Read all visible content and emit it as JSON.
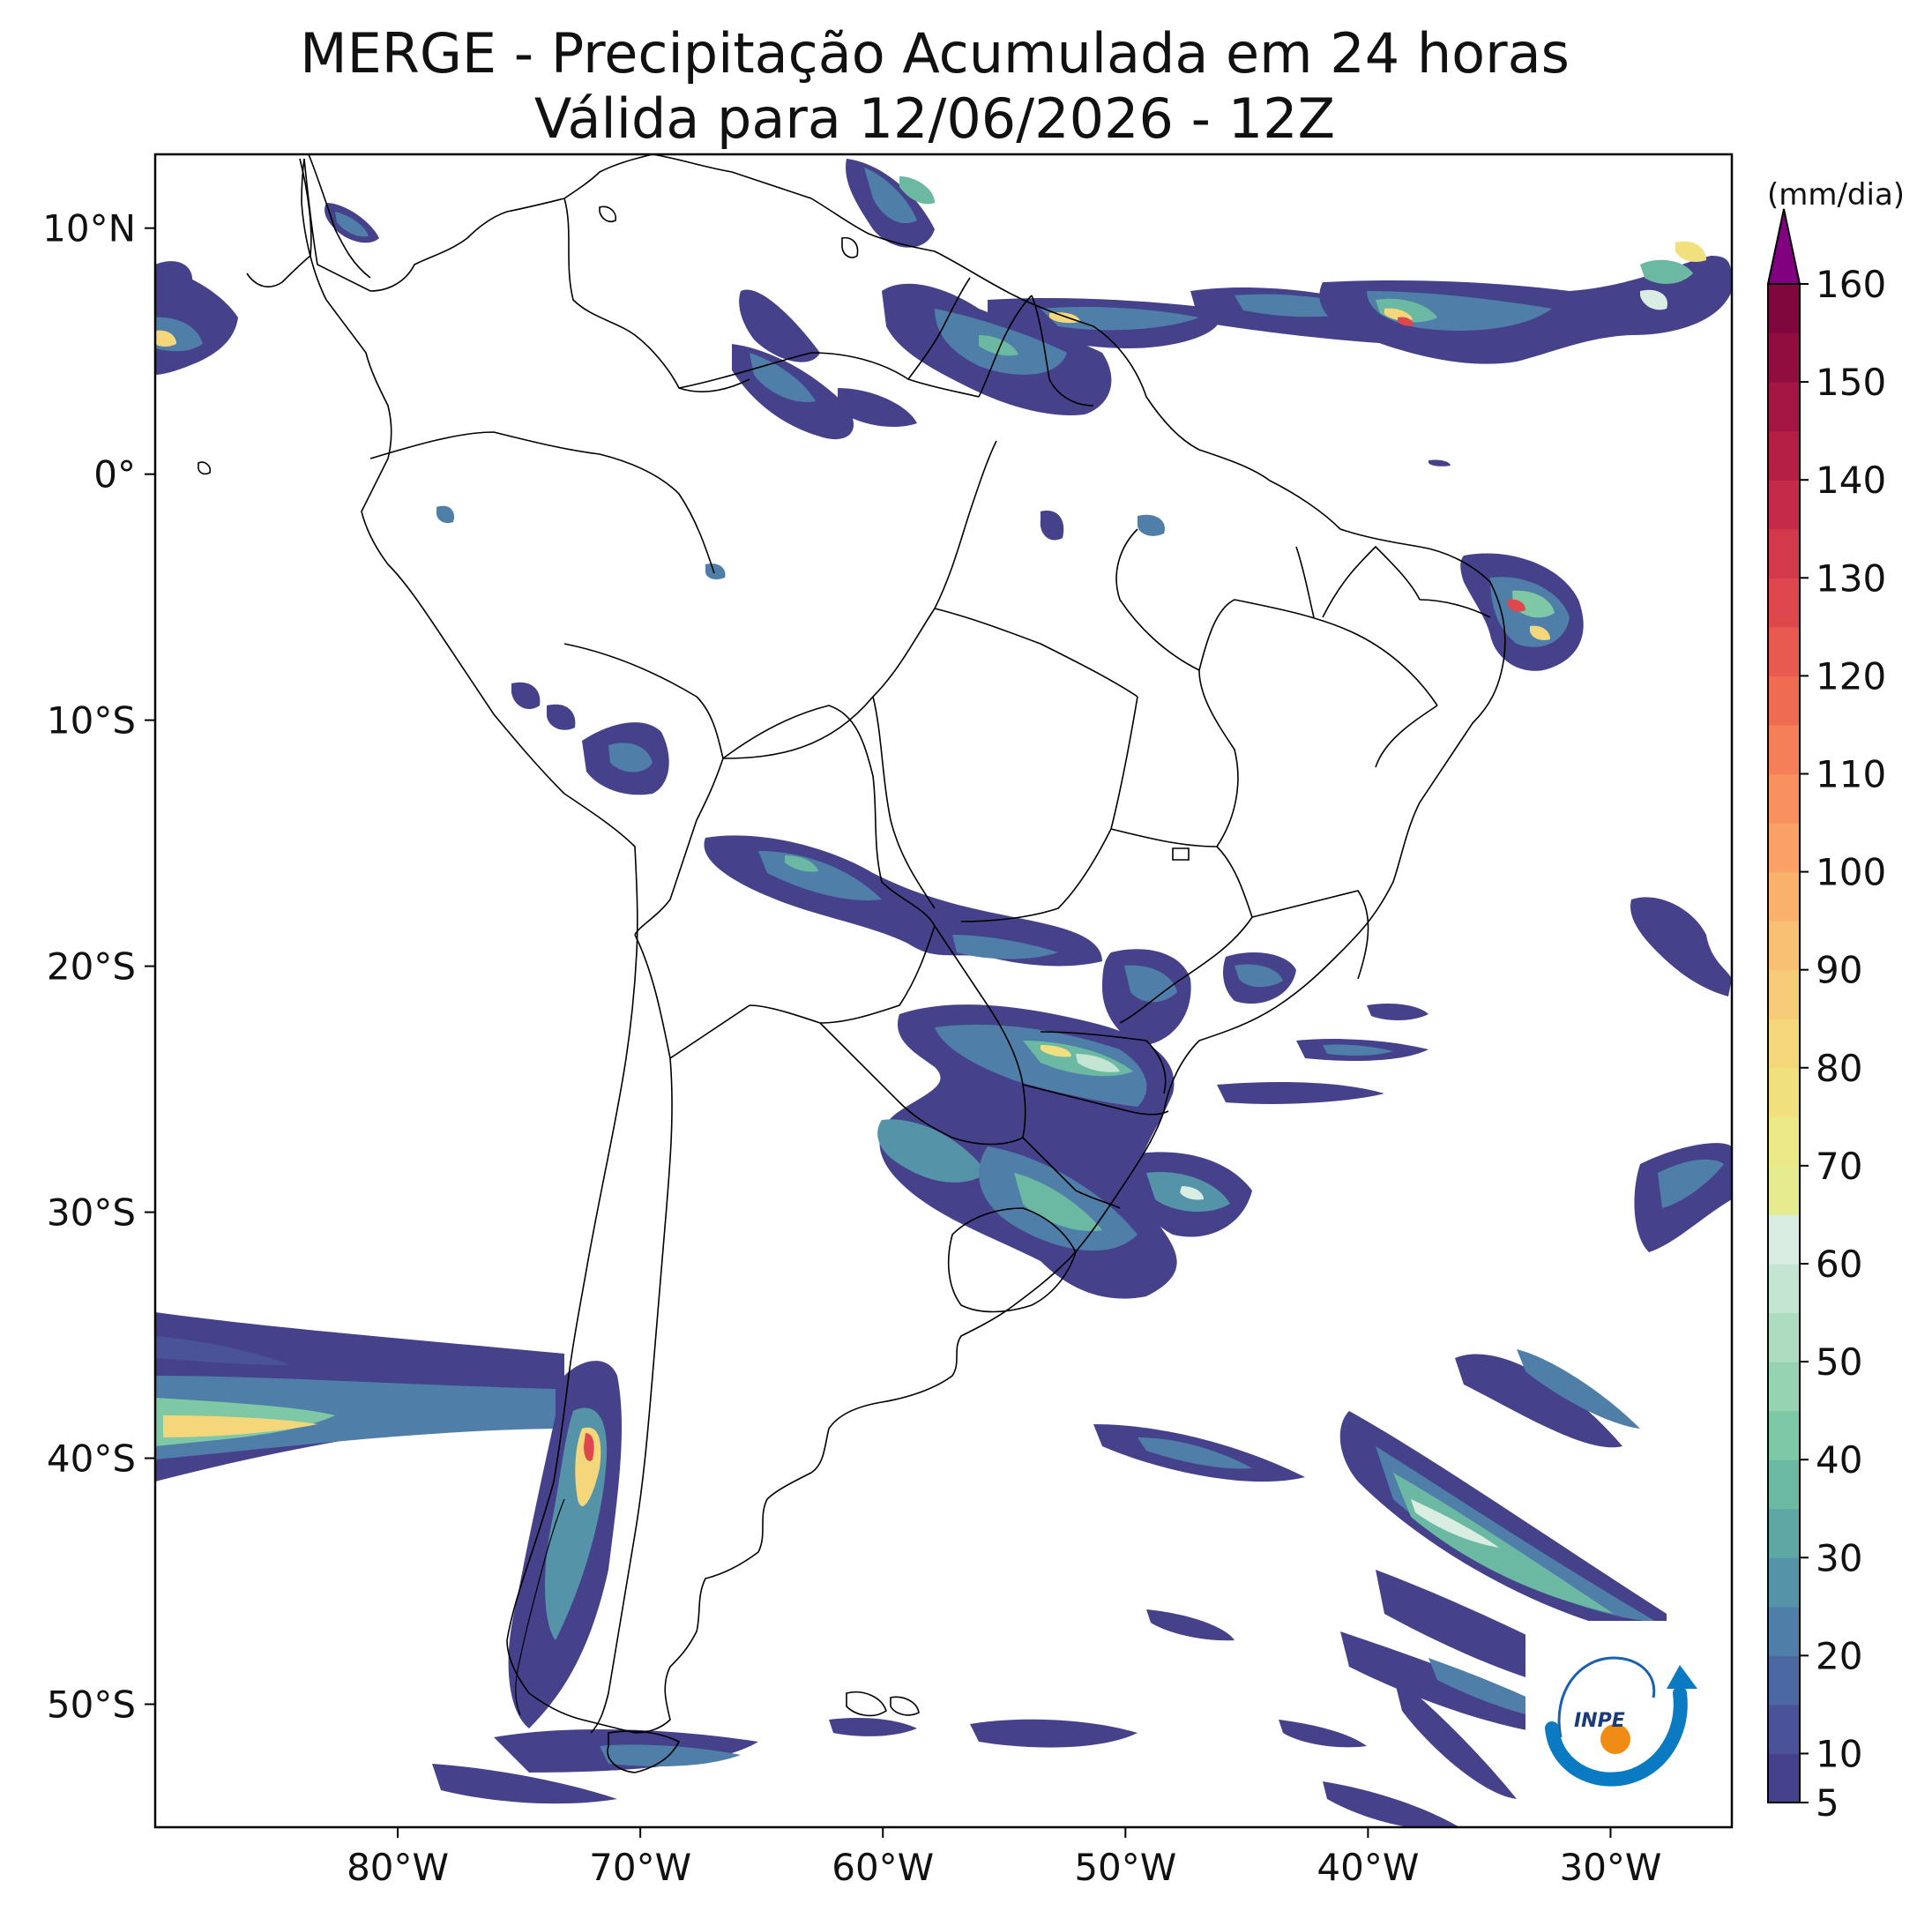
{
  "title": {
    "line1": "MERGE - Precipitação Acumulada em 24 horas",
    "line2": "Válida para 12/06/2026 - 12Z"
  },
  "map": {
    "lat_ticks": [
      {
        "value": 10,
        "label": "10°N"
      },
      {
        "value": 0,
        "label": "0°"
      },
      {
        "value": -10,
        "label": "10°S"
      },
      {
        "value": -20,
        "label": "20°S"
      },
      {
        "value": -30,
        "label": "30°S"
      },
      {
        "value": -40,
        "label": "40°S"
      },
      {
        "value": -50,
        "label": "50°S"
      }
    ],
    "lon_ticks": [
      {
        "value": -80,
        "label": "80°W"
      },
      {
        "value": -70,
        "label": "70°W"
      },
      {
        "value": -60,
        "label": "60°W"
      },
      {
        "value": -50,
        "label": "50°W"
      },
      {
        "value": -40,
        "label": "40°W"
      },
      {
        "value": -30,
        "label": "30°W"
      }
    ],
    "lon_range": [
      -90,
      -25
    ],
    "lat_range": [
      -55,
      13
    ]
  },
  "colorbar": {
    "unit": "(mm/dia)",
    "ticks": [
      5,
      10,
      20,
      30,
      40,
      50,
      60,
      70,
      80,
      90,
      100,
      110,
      120,
      130,
      140,
      150,
      160
    ],
    "extend_color": "#800080",
    "bands": [
      {
        "from": 5,
        "color": "#46418b"
      },
      {
        "from": 10,
        "color": "#4a5398"
      },
      {
        "from": 15,
        "color": "#4c68a2"
      },
      {
        "from": 20,
        "color": "#4f7fa8"
      },
      {
        "from": 25,
        "color": "#5593a8"
      },
      {
        "from": 30,
        "color": "#5ea7a4"
      },
      {
        "from": 35,
        "color": "#6cb9a3"
      },
      {
        "from": 40,
        "color": "#7fc8a6"
      },
      {
        "from": 45,
        "color": "#96d3b2"
      },
      {
        "from": 50,
        "color": "#addcc1"
      },
      {
        "from": 55,
        "color": "#c4e5d1"
      },
      {
        "from": 60,
        "color": "#d9ede3"
      },
      {
        "from": 65,
        "color": "#e5ec90"
      },
      {
        "from": 70,
        "color": "#ebe986"
      },
      {
        "from": 75,
        "color": "#f0e17e"
      },
      {
        "from": 80,
        "color": "#f5d77b"
      },
      {
        "from": 85,
        "color": "#f7cc78"
      },
      {
        "from": 90,
        "color": "#f8c073"
      },
      {
        "from": 95,
        "color": "#f9b16c"
      },
      {
        "from": 100,
        "color": "#f9a166"
      },
      {
        "from": 105,
        "color": "#f8915f"
      },
      {
        "from": 110,
        "color": "#f57f58"
      },
      {
        "from": 115,
        "color": "#ef6c53"
      },
      {
        "from": 120,
        "color": "#e8594f"
      },
      {
        "from": 125,
        "color": "#de484d"
      },
      {
        "from": 130,
        "color": "#d2394b"
      },
      {
        "from": 135,
        "color": "#c52b49"
      },
      {
        "from": 140,
        "color": "#b51f46"
      },
      {
        "from": 145,
        "color": "#a31543"
      },
      {
        "from": 150,
        "color": "#910d40"
      },
      {
        "from": 155,
        "color": "#80073d"
      }
    ]
  },
  "logo": {
    "text": "INPE"
  }
}
